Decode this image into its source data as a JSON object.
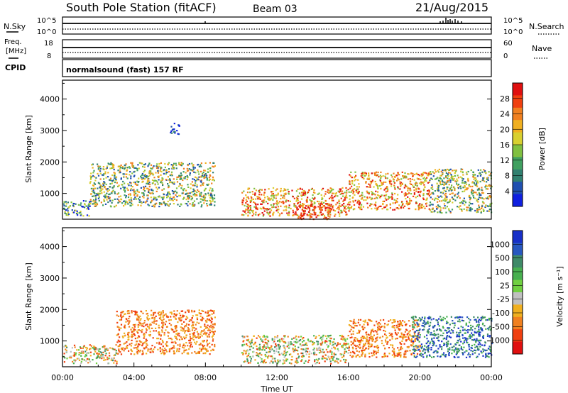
{
  "header": {
    "title": "South Pole Station (fitACF)",
    "beam": "Beam 03",
    "date": "21/Aug/2015"
  },
  "top_panels": {
    "nsky_label": "N.Sky",
    "nsky_ticks": [
      "10^5",
      "10^0"
    ],
    "nsearch_label": "N.Search",
    "nsearch_ticks": [
      "10^5",
      "10^0"
    ],
    "freq_label_1": "Freq.",
    "freq_label_2": "[MHz]",
    "freq_ticks": [
      "18",
      "8"
    ],
    "nave_label": "Nave",
    "nave_ticks": [
      "60",
      "0"
    ],
    "cpid_label": "CPID",
    "cpid_text": "normalsound (fast) 157 RF"
  },
  "chart_data": [
    {
      "type": "heatmap",
      "panel": "power",
      "ylabel": "Slant Range [km]",
      "yticks": [
        "1000",
        "2000",
        "3000",
        "4000"
      ],
      "ylim": [
        180,
        4600
      ],
      "xlim_hours": [
        0,
        24
      ],
      "colorbar_label": "Power [dB]",
      "colorbar_ticks": [
        "28",
        "24",
        "20",
        "16",
        "12",
        "8",
        "4"
      ],
      "colorbar_colors": [
        "#e01010",
        "#f04010",
        "#f08020",
        "#f0b020",
        "#d8d030",
        "#80c040",
        "#40a060",
        "#308070",
        "#2050b0",
        "#1020e0"
      ],
      "features": [
        {
          "hours": [
            0.0,
            1.5
          ],
          "range_km": [
            300,
            800
          ],
          "level": "low-mid"
        },
        {
          "hours": [
            1.5,
            8.5
          ],
          "range_km": [
            600,
            2000
          ],
          "level": "mid-high"
        },
        {
          "hours": [
            6.0,
            6.5
          ],
          "range_km": [
            2900,
            3300
          ],
          "level": "low"
        },
        {
          "hours": [
            10.0,
            16.0
          ],
          "range_km": [
            300,
            1200
          ],
          "level": "high"
        },
        {
          "hours": [
            13.0,
            15.0
          ],
          "range_km": [
            200,
            700
          ],
          "level": "very-high"
        },
        {
          "hours": [
            16.0,
            20.5
          ],
          "range_km": [
            500,
            1700
          ],
          "level": "high"
        },
        {
          "hours": [
            20.5,
            24.0
          ],
          "range_km": [
            400,
            1800
          ],
          "level": "mid-high"
        }
      ]
    },
    {
      "type": "heatmap",
      "panel": "velocity",
      "ylabel": "Slant Range [km]",
      "yticks": [
        "1000",
        "2000",
        "3000",
        "4000"
      ],
      "ylim": [
        180,
        4600
      ],
      "xlim_hours": [
        0,
        24
      ],
      "xticks": [
        "00:00",
        "04:00",
        "08:00",
        "12:00",
        "16:00",
        "20:00",
        "00:00"
      ],
      "xlabel": "Time UT",
      "colorbar_label": "Velocity [m s⁻¹]",
      "colorbar_ticks": [
        "1000",
        "500",
        "100",
        "25",
        "-25",
        "-100",
        "-500",
        "-1000"
      ],
      "colorbar_colors": [
        "#1830c8",
        "#2858c0",
        "#3f8a68",
        "#48b050",
        "#70d040",
        "#c0c0c0",
        "#f0b020",
        "#f08020",
        "#f04010",
        "#e01010"
      ],
      "features": [
        {
          "hours": [
            0.0,
            3.0
          ],
          "range_km": [
            300,
            900
          ],
          "velocity": "mixed"
        },
        {
          "hours": [
            3.0,
            8.5
          ],
          "range_km": [
            600,
            2000
          ],
          "velocity": "negative"
        },
        {
          "hours": [
            10.0,
            16.0
          ],
          "range_km": [
            300,
            1200
          ],
          "velocity": "mixed"
        },
        {
          "hours": [
            16.0,
            20.0
          ],
          "range_km": [
            500,
            1700
          ],
          "velocity": "negative"
        },
        {
          "hours": [
            19.5,
            24.0
          ],
          "range_km": [
            500,
            1800
          ],
          "velocity": "positive"
        }
      ]
    }
  ]
}
